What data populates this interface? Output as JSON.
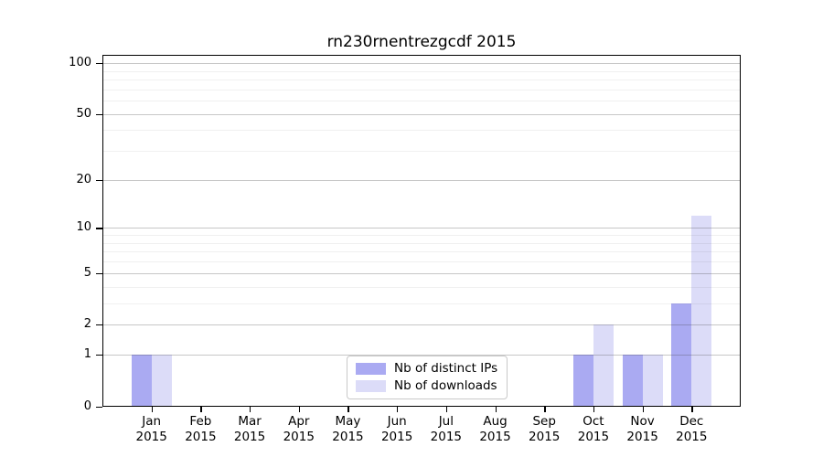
{
  "title": "rn230rnentrezgcdf 2015",
  "colors": {
    "distinct_ips_bar": "#aaaaf2",
    "downloads_bar": "#dcdcf8",
    "grid_major": "rgba(70,70,70,0.30)",
    "grid_minor": "rgba(70,70,70,0.08)",
    "axis": "#000000",
    "legend_border": "#c9c9c9",
    "background": "#ffffff"
  },
  "chart_data": {
    "type": "bar",
    "title": "rn230rnentrezgcdf 2015",
    "categories": [
      "Jan",
      "Feb",
      "Mar",
      "Apr",
      "May",
      "Jun",
      "Jul",
      "Aug",
      "Sep",
      "Oct",
      "Nov",
      "Dec"
    ],
    "category_year": "2015",
    "series": [
      {
        "name": "Nb of distinct IPs",
        "color": "#aaaaf2",
        "values": [
          1,
          0,
          0,
          0,
          0,
          0,
          0,
          0,
          0,
          1,
          1,
          3
        ]
      },
      {
        "name": "Nb of downloads",
        "color": "#dcdcf8",
        "values": [
          1,
          0,
          0,
          0,
          0,
          0,
          0,
          0,
          0,
          2,
          1,
          12
        ]
      }
    ],
    "xlabel": "",
    "ylabel": "",
    "y_scale": "log1p",
    "ylim": [
      0,
      113
    ],
    "y_ticks": [
      0,
      1,
      2,
      5,
      10,
      20,
      50,
      100
    ],
    "y_minor_gridlines": [
      3,
      4,
      6,
      7,
      8,
      9,
      30,
      40,
      60,
      70,
      80,
      90
    ],
    "grid": true,
    "legend_position": "lower center"
  }
}
